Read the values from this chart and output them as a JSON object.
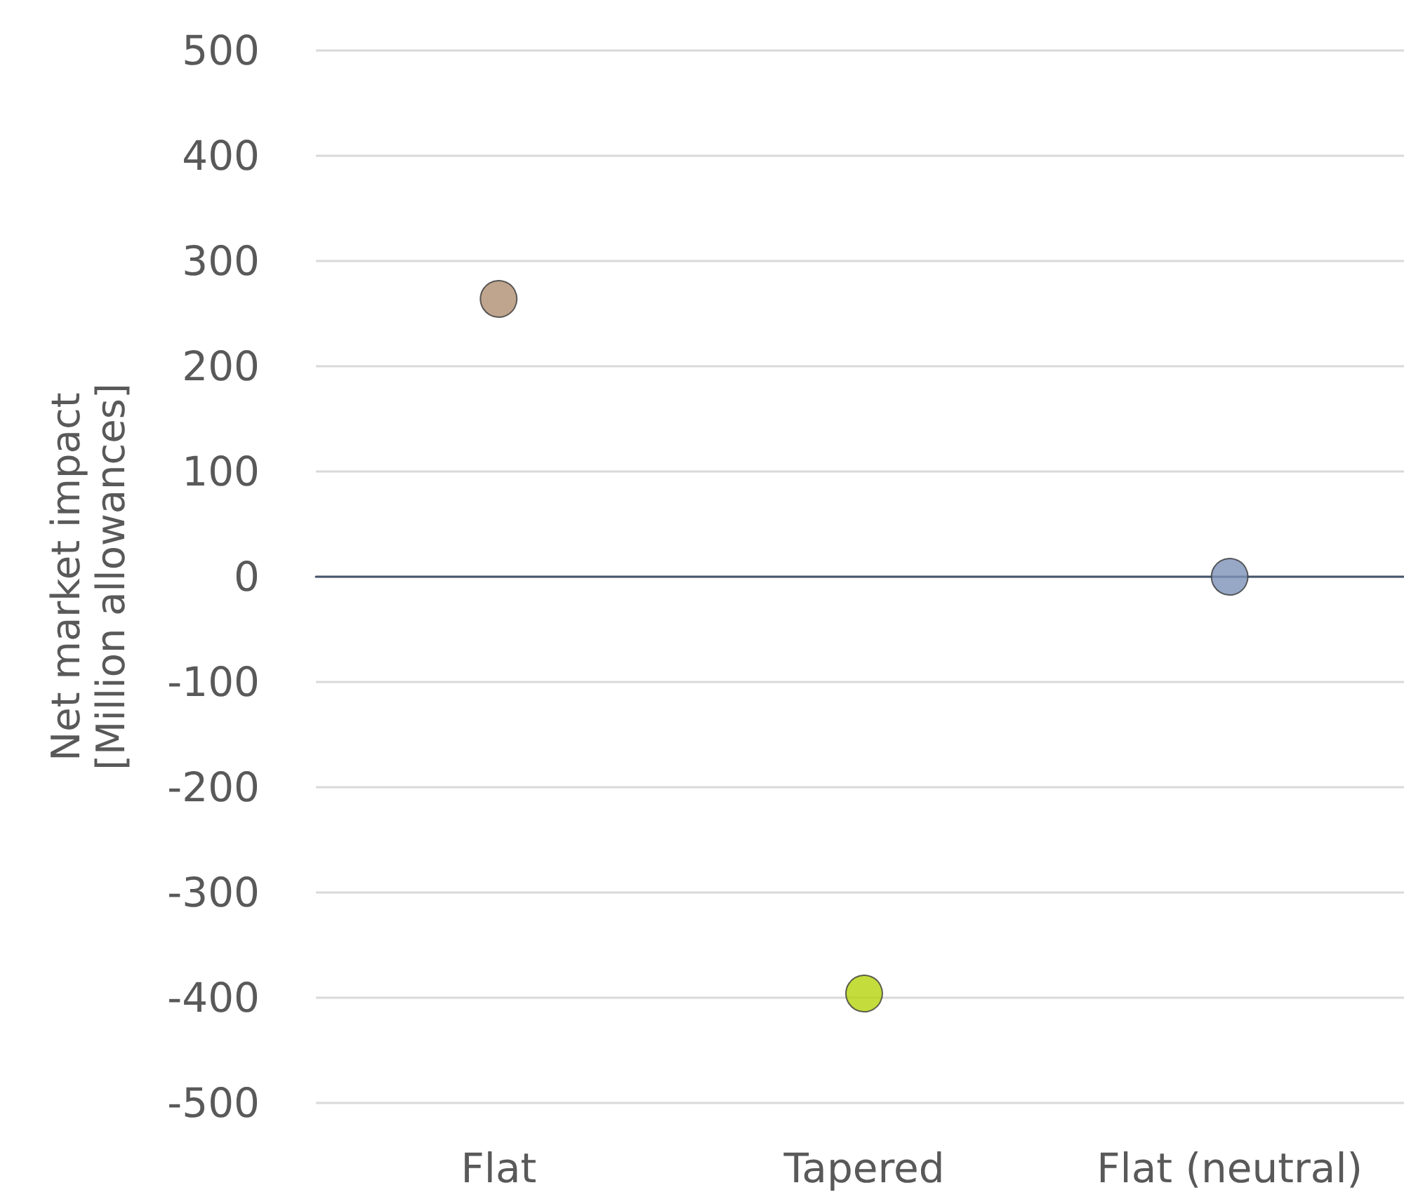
{
  "chart_data": {
    "type": "scatter",
    "ylabel": "Net market impact\n[Million allowances]",
    "categories": [
      "Flat",
      "Tapered",
      "Flat (neutral)"
    ],
    "values": [
      264,
      -396,
      0
    ],
    "colors": [
      "#b08f72",
      "#b5d30b",
      "#7d91b8"
    ],
    "ylim": [
      -500,
      500
    ],
    "yticks": [
      -500,
      -400,
      -300,
      -200,
      -100,
      0,
      100,
      200,
      300,
      400,
      500
    ],
    "grid": "y",
    "marker": "circle"
  }
}
